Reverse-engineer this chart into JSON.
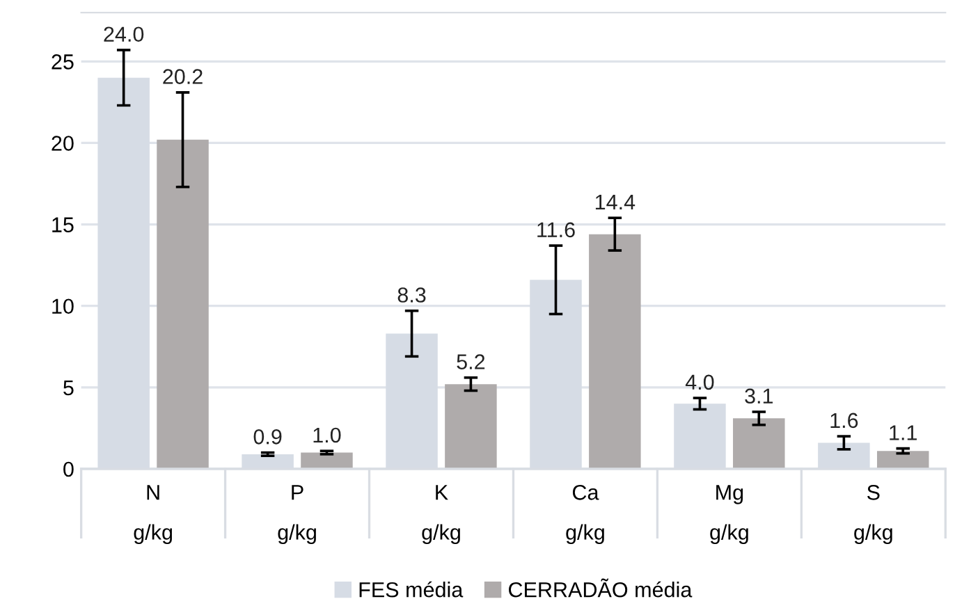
{
  "chart_data": {
    "type": "bar",
    "categories": [
      "N\ng/kg",
      "P\ng/kg",
      "K\ng/kg",
      "Ca\ng/kg",
      "Mg\ng/kg",
      "S\ng/kg"
    ],
    "series": [
      {
        "name": "FES média",
        "color": "#d6dce5",
        "values": [
          24.0,
          0.9,
          8.3,
          11.6,
          4.0,
          1.6
        ],
        "value_labels": [
          "24.0",
          "0.9",
          "8.3",
          "11.6",
          "4.0",
          "1.6"
        ],
        "errors": [
          1.7,
          0.1,
          1.4,
          2.1,
          0.35,
          0.4
        ]
      },
      {
        "name": "CERRADÃO média",
        "color": "#afabab",
        "values": [
          20.2,
          1.0,
          5.2,
          14.4,
          3.1,
          1.1
        ],
        "value_labels": [
          "20.2",
          "1.0",
          "5.2",
          "14.4",
          "3.1",
          "1.1"
        ],
        "errors": [
          2.9,
          0.1,
          0.4,
          1.0,
          0.4,
          0.15
        ]
      }
    ],
    "ylim": [
      0,
      28
    ],
    "yticks": [
      0,
      5,
      10,
      15,
      20,
      25
    ],
    "grid": "y",
    "legend": "bottom"
  }
}
